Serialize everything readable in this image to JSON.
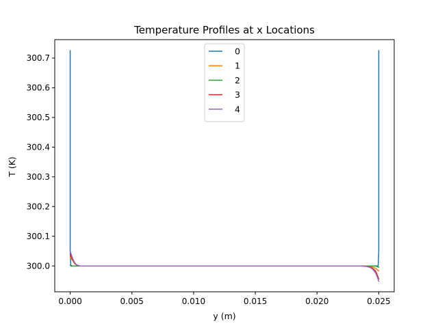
{
  "chart_data": {
    "type": "line",
    "title": "Temperature Profiles at x Locations",
    "xlabel": "y (m)",
    "ylabel": "T (K)",
    "xlim": [
      -0.00125,
      0.02625
    ],
    "ylim": [
      299.913,
      300.762
    ],
    "xticks": [
      0.0,
      0.005,
      0.01,
      0.015,
      0.02,
      0.025
    ],
    "xtick_labels": [
      "0.000",
      "0.005",
      "0.010",
      "0.015",
      "0.020",
      "0.025"
    ],
    "yticks": [
      300.0,
      300.1,
      300.2,
      300.3,
      300.4,
      300.5,
      300.6,
      300.7
    ],
    "ytick_labels": [
      "300.0",
      "300.1",
      "300.2",
      "300.3",
      "300.4",
      "300.5",
      "300.6",
      "300.7"
    ],
    "grid": false,
    "legend_position": "top-center",
    "series": [
      {
        "name": "0",
        "color": "#1f77b4",
        "x": [
          0.0,
          0.0,
          5e-05,
          0.0001,
          0.0249,
          0.02495,
          0.025,
          0.025
        ],
        "y": [
          300.725,
          300.05,
          300.0,
          300.0,
          300.0,
          300.0,
          300.05,
          300.725
        ]
      },
      {
        "name": "1",
        "color": "#ff7f0e",
        "x": [
          0.0,
          0.0001,
          0.0002,
          0.0003,
          0.0004,
          0.0006,
          0.0008,
          0.001,
          0.024,
          0.0243,
          0.0245,
          0.0247,
          0.0248,
          0.0249,
          0.025
        ],
        "y": [
          300.03,
          300.024,
          300.018,
          300.012,
          300.007,
          300.002,
          300.0,
          300.0,
          300.0,
          299.998,
          299.996,
          299.993,
          299.99,
          299.987,
          299.983
        ]
      },
      {
        "name": "2",
        "color": "#2ca02c",
        "x": [
          0.0,
          0.0001,
          0.0002,
          0.0004,
          0.0006,
          0.001,
          0.0245,
          0.0248,
          0.0249,
          0.025
        ],
        "y": [
          300.003,
          300.001,
          300.0,
          300.0,
          300.0,
          300.0,
          300.0,
          299.999,
          299.997,
          299.996
        ]
      },
      {
        "name": "3",
        "color": "#d62728",
        "x": [
          0.0,
          0.0001,
          0.0002,
          0.0003,
          0.0004,
          0.0005,
          0.0006,
          0.0008,
          0.001,
          0.0235,
          0.024,
          0.0243,
          0.0245,
          0.0247,
          0.0248,
          0.0249,
          0.025
        ],
        "y": [
          300.04,
          300.03,
          300.021,
          300.013,
          300.007,
          300.004,
          300.002,
          300.0,
          300.0,
          300.0,
          299.999,
          299.996,
          299.992,
          299.985,
          299.978,
          299.967,
          299.956
        ]
      },
      {
        "name": "4",
        "color": "#9467bd",
        "x": [
          0.0,
          0.0001,
          0.0002,
          0.0003,
          0.0004,
          0.0005,
          0.0006,
          0.0008,
          0.001,
          0.0235,
          0.024,
          0.0243,
          0.0245,
          0.0247,
          0.0248,
          0.0249,
          0.025
        ],
        "y": [
          300.05,
          300.037,
          300.026,
          300.016,
          300.009,
          300.005,
          300.002,
          300.0,
          300.0,
          300.0,
          299.998,
          299.995,
          299.989,
          299.979,
          299.971,
          299.96,
          299.948
        ]
      }
    ]
  }
}
